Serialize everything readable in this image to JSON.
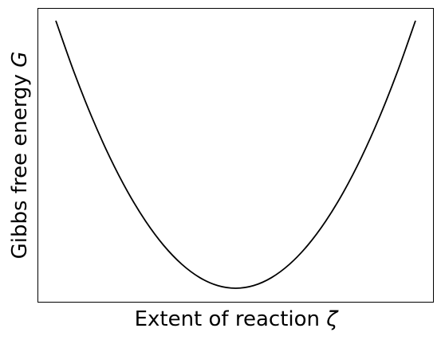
{
  "chart_data": {
    "type": "line",
    "title": "",
    "xlabel": "Extent of reaction",
    "xlabel_symbol": "ζ",
    "ylabel": "Gibbs free energy",
    "ylabel_symbol": "G",
    "xticks": false,
    "yticks": false,
    "grid": false,
    "legend": "none",
    "xlim": [
      0,
      1
    ],
    "ylim": [
      -0.05,
      1.05
    ],
    "series": [
      {
        "color": "#000000",
        "x": [
          0.0,
          0.05,
          0.1,
          0.15,
          0.2,
          0.25,
          0.3,
          0.35,
          0.4,
          0.45,
          0.5,
          0.55,
          0.6,
          0.65,
          0.7,
          0.75,
          0.8,
          0.85,
          0.9,
          0.95,
          1.0
        ],
        "y": [
          1.0,
          0.81,
          0.64,
          0.49,
          0.36,
          0.25,
          0.16,
          0.09,
          0.04,
          0.01,
          0.0,
          0.01,
          0.04,
          0.09,
          0.16,
          0.25,
          0.36,
          0.49,
          0.64,
          0.81,
          1.0
        ]
      }
    ]
  }
}
